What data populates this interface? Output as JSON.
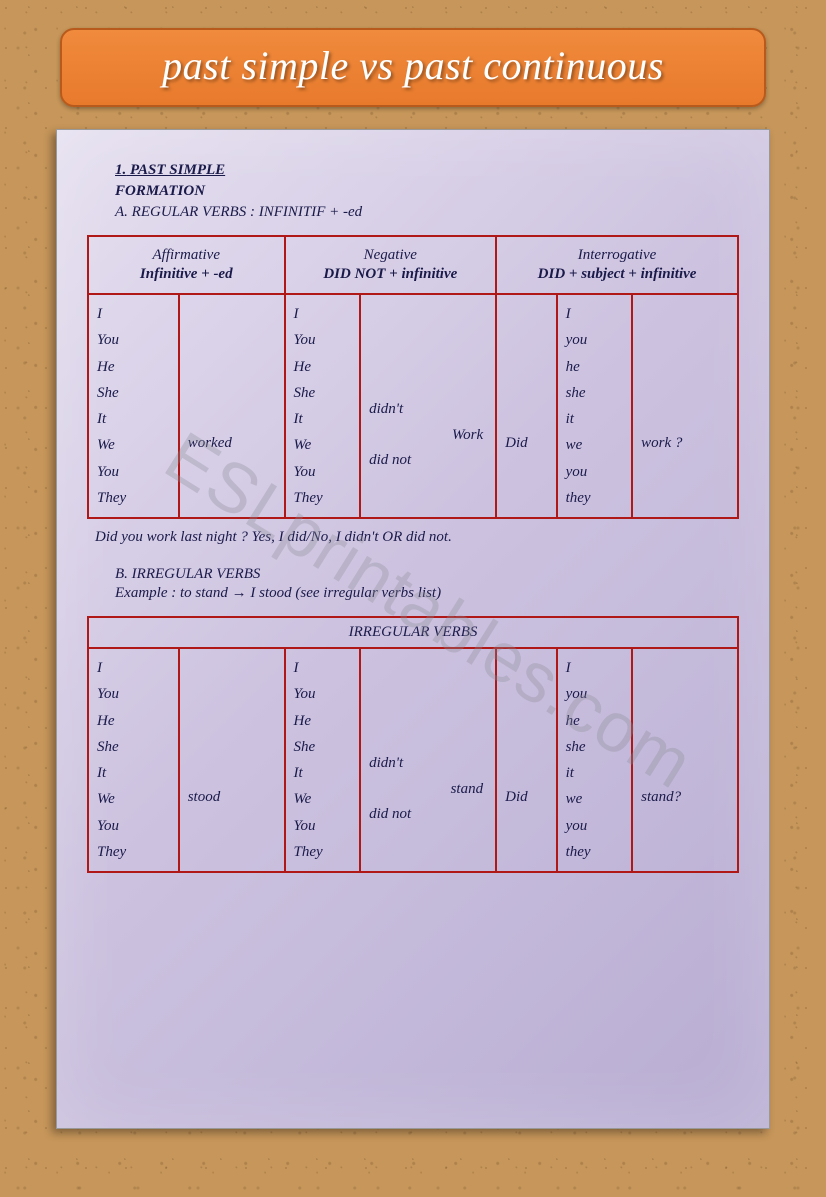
{
  "title": "past simple vs past continuous",
  "section1": {
    "num": "1.",
    "name": "PAST SIMPLE",
    "formation": "FORMATION",
    "regA": "A. REGULAR VERBS : INFINITIF + -ed"
  },
  "tableA": {
    "h1lbl": "Affirmative",
    "h1fmt": "Infinitive + -ed",
    "h2lbl": "Negative",
    "h2fmt": "DID NOT + infinitive",
    "h3lbl": "Interrogative",
    "h3fmt": "DID + subject + infinitive",
    "pronounsCap": "I\nYou\nHe\nShe\nIt\nWe\nYou\nThey",
    "pronounsLow": "I\nyou\nhe\nshe\nit\nwe\nyou\nthey",
    "affVerb": "worked",
    "neg1": "didn't",
    "negVerb": "Work",
    "neg2": "did not",
    "did": "Did",
    "qVerb": "work ?"
  },
  "note": "Did you work last night ? Yes, I did/No, I didn't OR did not.",
  "sectionB": {
    "title": "B. IRREGULAR VERBS",
    "example": "Example : to stand → I stood (see irregular verbs list)"
  },
  "tableB": {
    "header": "IRREGULAR VERBS",
    "pronounsCap": "I\nYou\nHe\nShe\nIt\nWe\nYou\nThey",
    "pronounsLow": "I\nyou\nhe\nshe\nit\nwe\nyou\nthey",
    "affVerb": "stood",
    "neg1": "didn't",
    "negVerb": "stand",
    "neg2": "did not",
    "did": "Did",
    "qVerb": "stand?"
  },
  "watermark": "ESLprintables.com"
}
